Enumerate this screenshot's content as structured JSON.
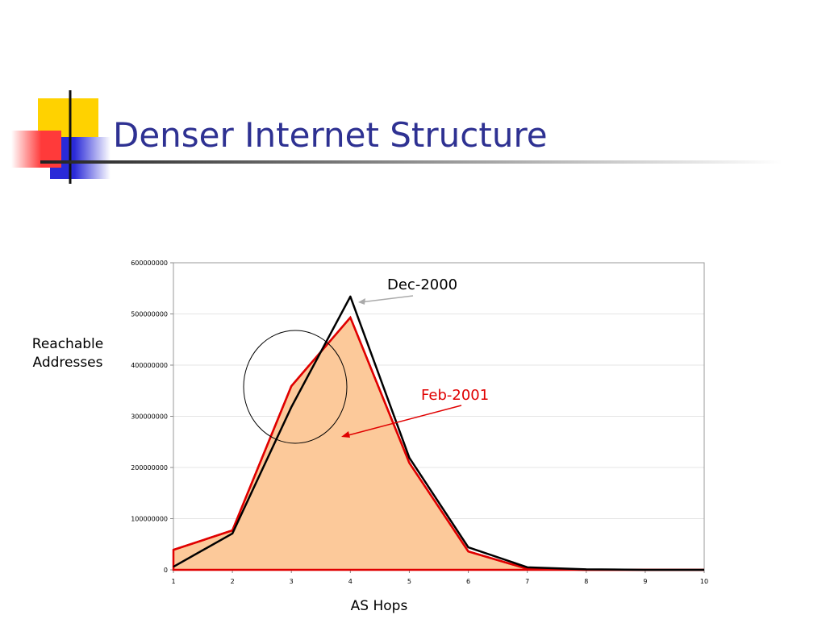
{
  "slide": {
    "title": "Denser Internet Structure"
  },
  "chart_data": {
    "type": "line",
    "x_label": "AS Hops",
    "y_label": "Reachable Addresses",
    "x": [
      1,
      2,
      3,
      4,
      5,
      6,
      7,
      8,
      9,
      10
    ],
    "series": [
      {
        "name": "Dec-2000",
        "color": "#000000",
        "values": [
          6000000,
          71000000,
          318000000,
          534000000,
          219000000,
          44000000,
          5000000,
          1000000,
          0,
          0
        ]
      },
      {
        "name": "Feb-2001",
        "color": "#e00000",
        "fill": "#fcc99a",
        "values": [
          39000000,
          77000000,
          359000000,
          493000000,
          209000000,
          36000000,
          2000000,
          0,
          0,
          0
        ]
      }
    ],
    "xlim": [
      1,
      10
    ],
    "xticks": [
      1,
      2,
      3,
      4,
      5,
      6,
      7,
      8,
      9,
      10
    ],
    "ylim": [
      0,
      600000000
    ],
    "yticks": [
      0,
      100000000,
      200000000,
      300000000,
      400000000,
      500000000,
      600000000
    ],
    "grid": true
  }
}
